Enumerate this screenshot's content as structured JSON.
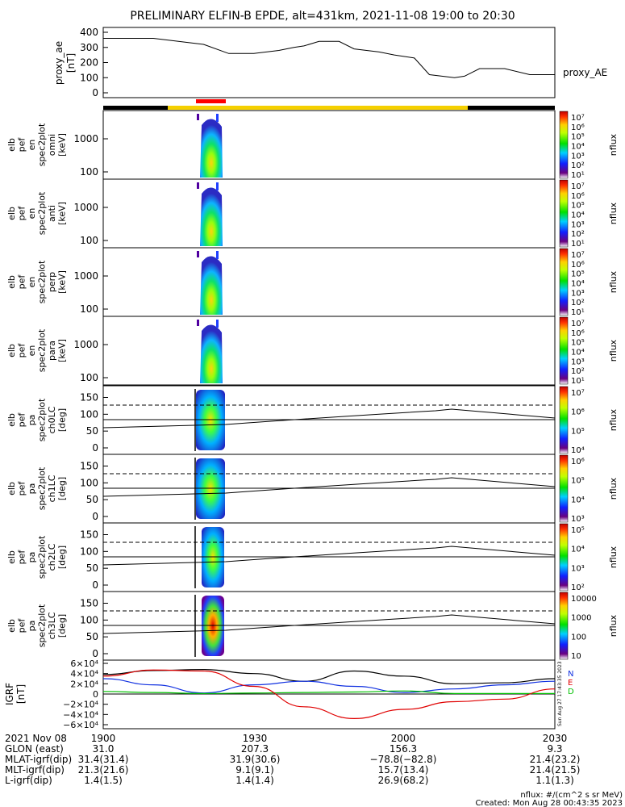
{
  "title": "PRELIMINARY ELFIN-B EPDE, alt=431km, 2021-11-08 19:00 to 20:30",
  "colors": {
    "yellow_bar": "#f5d000",
    "red_bar": "#ff0000",
    "black_bar": "#000000",
    "igrf_black": "#000000",
    "igrf_blue": "#1030e0",
    "igrf_green": "#00c000",
    "igrf_red": "#e00000"
  },
  "proxy_panel": {
    "ylabel_1": "proxy_ae",
    "ylabel_2": "[nT]",
    "legend": "proxy_AE",
    "ticks": [
      "400",
      "300",
      "200",
      "100",
      "0"
    ]
  },
  "spec_panels": [
    {
      "label_lines": [
        "elb",
        "pef",
        "en",
        "spec2plot",
        "omni",
        "[keV]"
      ],
      "ticks": [
        "1000",
        "100"
      ],
      "cbar_ticks": [
        "10⁷",
        "10⁶",
        "10⁵",
        "10⁴",
        "10³",
        "10²",
        "10¹"
      ],
      "cbar_label": "nflux"
    },
    {
      "label_lines": [
        "elb",
        "pef",
        "en",
        "spec2plot",
        "anti",
        "[keV]"
      ],
      "ticks": [
        "1000",
        "100"
      ],
      "cbar_ticks": [
        "10⁷",
        "10⁶",
        "10⁵",
        "10⁴",
        "10³",
        "10²",
        "10¹"
      ],
      "cbar_label": "nflux"
    },
    {
      "label_lines": [
        "elb",
        "pef",
        "en",
        "spec2plot",
        "perp",
        "[keV]"
      ],
      "ticks": [
        "1000",
        "100"
      ],
      "cbar_ticks": [
        "10⁷",
        "10⁶",
        "10⁵",
        "10⁴",
        "10³",
        "10²",
        "10¹"
      ],
      "cbar_label": "nflux"
    },
    {
      "label_lines": [
        "elb",
        "pef",
        "en",
        "spec2plot",
        "para",
        "[keV]"
      ],
      "ticks": [
        "1000",
        "100"
      ],
      "cbar_ticks": [
        "10⁷",
        "10⁶",
        "10⁵",
        "10⁴",
        "10³",
        "10²",
        "10¹"
      ],
      "cbar_label": "nflux"
    },
    {
      "label_lines": [
        "elb",
        "pef",
        "pa",
        "spec2plot",
        "ch0LC",
        "[deg]"
      ],
      "ticks": [
        "150",
        "100",
        "50",
        "0"
      ],
      "cbar_ticks": [
        "10⁷",
        "10⁶",
        "10⁵",
        "10⁴"
      ],
      "cbar_label": "nflux"
    },
    {
      "label_lines": [
        "elb",
        "pef",
        "pa",
        "spec2plot",
        "ch1LC",
        "[deg]"
      ],
      "ticks": [
        "150",
        "100",
        "50",
        "0"
      ],
      "cbar_ticks": [
        "10⁶",
        "10⁵",
        "10⁴",
        "10³"
      ],
      "cbar_label": "nflux"
    },
    {
      "label_lines": [
        "elb",
        "pef",
        "pa",
        "spec2plot",
        "ch2LC",
        "[deg]"
      ],
      "ticks": [
        "150",
        "100",
        "50",
        "0"
      ],
      "cbar_ticks": [
        "10⁵",
        "10⁴",
        "10³",
        "10²"
      ],
      "cbar_label": "nflux"
    },
    {
      "label_lines": [
        "elb",
        "pef",
        "pa",
        "spec2plot",
        "ch3LC",
        "[deg]"
      ],
      "ticks": [
        "150",
        "100",
        "50",
        "0"
      ],
      "cbar_ticks": [
        "10000",
        "1000",
        "100",
        "10"
      ],
      "cbar_label": "nflux"
    }
  ],
  "igrf_panel": {
    "ylabel_1": "IGRF",
    "ylabel_2": "[nT]",
    "ticks": [
      "6×10⁴",
      "4×10⁴",
      "2×10⁴",
      "0",
      "−2×10⁴",
      "−4×10⁴",
      "−6×10⁴"
    ],
    "legend": [
      "N",
      "E",
      "D"
    ],
    "side_note": "Sun Aug 27 17:43:35 2023"
  },
  "footer": {
    "rows": [
      {
        "label": "2021 Nov 08",
        "values": [
          "1900",
          "1930",
          "2000",
          "2030"
        ]
      },
      {
        "label": "GLON (east)",
        "values": [
          "31.0",
          "207.3",
          "156.3",
          "9.3"
        ]
      },
      {
        "label": "MLAT-igrf(dip)",
        "values": [
          "31.4(31.4)",
          "31.9(30.6)",
          "−78.8(−82.8)",
          "21.4(23.2)"
        ]
      },
      {
        "label": "MLT-igrf(dip)",
        "values": [
          "21.3(21.6)",
          "9.1(9.1)",
          "15.7(13.4)",
          "21.4(21.5)"
        ]
      },
      {
        "label": "L-igrf(dip)",
        "values": [
          "1.4(1.5)",
          "1.4(1.4)",
          "26.9(68.2)",
          "1.1(1.3)"
        ]
      }
    ],
    "units_note": "nflux: #/(cm^2 s sr MeV)",
    "created": "Created: Mon Aug 28 00:43:35 2023"
  },
  "chart_data": [
    {
      "type": "line",
      "name": "proxy_AE",
      "x_unit": "minutes since 19:00",
      "x": [
        0,
        10,
        20,
        25,
        30,
        35,
        38,
        40,
        43,
        47,
        50,
        55,
        58,
        62,
        65,
        70,
        72,
        75,
        80,
        85,
        90
      ],
      "values": [
        360,
        360,
        320,
        260,
        260,
        280,
        300,
        310,
        340,
        340,
        290,
        270,
        250,
        230,
        120,
        100,
        110,
        160,
        160,
        120,
        120
      ],
      "ylim": [
        0,
        420
      ]
    },
    {
      "type": "line",
      "name": "igrf_components",
      "x_unit": "minutes since 19:00",
      "x": [
        0,
        10,
        20,
        30,
        40,
        50,
        60,
        70,
        80,
        90
      ],
      "series": [
        {
          "name": "black",
          "values": [
            38000,
            46000,
            48000,
            40000,
            25000,
            45000,
            35000,
            20000,
            22000,
            30000
          ]
        },
        {
          "name": "blue",
          "values": [
            30000,
            18000,
            2000,
            18000,
            25000,
            15000,
            3000,
            10000,
            18000,
            25000
          ]
        },
        {
          "name": "green",
          "values": [
            5000,
            3000,
            1000,
            2000,
            3000,
            4000,
            6000,
            1000,
            1000,
            1000
          ]
        },
        {
          "name": "red",
          "values": [
            35000,
            47000,
            45000,
            15000,
            -25000,
            -48000,
            -30000,
            -15000,
            -10000,
            10000
          ]
        }
      ],
      "ylim": [
        -60000,
        60000
      ]
    }
  ]
}
